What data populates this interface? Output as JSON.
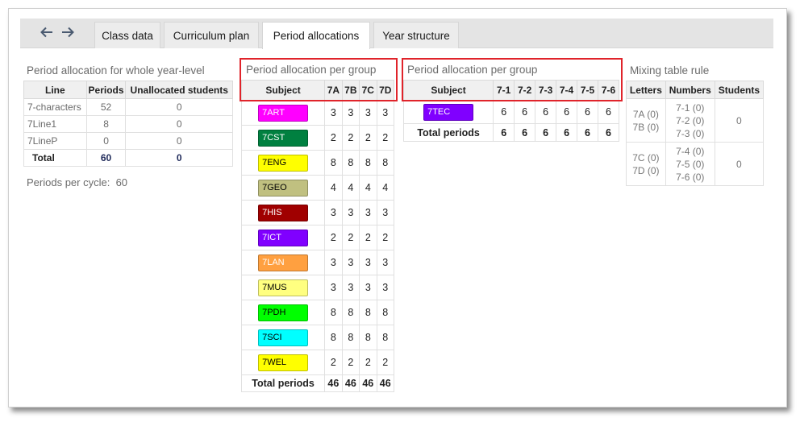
{
  "tabs": [
    {
      "label": "Class data"
    },
    {
      "label": "Curriculum plan"
    },
    {
      "label": "Period allocations"
    },
    {
      "label": "Year structure"
    }
  ],
  "whole": {
    "title": "Period allocation for whole year-level",
    "headers": [
      "Line",
      "Periods",
      "Unallocated students"
    ],
    "rows": [
      [
        "7-characters",
        "52",
        "0"
      ],
      [
        "7Line1",
        "8",
        "0"
      ],
      [
        "7LineP",
        "0",
        "0"
      ]
    ],
    "total": [
      "Total",
      "60",
      "0"
    ],
    "periods_per_cycle_label": "Periods per cycle:",
    "periods_per_cycle_value": "60"
  },
  "group1": {
    "title": "Period allocation per group",
    "headers": [
      "Subject",
      "7A",
      "7B",
      "7C",
      "7D"
    ],
    "rows": [
      {
        "subject": "7ART",
        "color": "#ff00ff",
        "text": "#ffffff",
        "values": [
          "3",
          "3",
          "3",
          "3"
        ]
      },
      {
        "subject": "7CST",
        "color": "#008040",
        "text": "#ffffff",
        "values": [
          "2",
          "2",
          "2",
          "2"
        ]
      },
      {
        "subject": "7ENG",
        "color": "#ffff00",
        "text": "#000000",
        "values": [
          "8",
          "8",
          "8",
          "8"
        ]
      },
      {
        "subject": "7GEO",
        "color": "#c0c080",
        "text": "#000000",
        "values": [
          "4",
          "4",
          "4",
          "4"
        ]
      },
      {
        "subject": "7HIS",
        "color": "#a00000",
        "text": "#ffffff",
        "values": [
          "3",
          "3",
          "3",
          "3"
        ]
      },
      {
        "subject": "7ICT",
        "color": "#8000ff",
        "text": "#ffffff",
        "values": [
          "2",
          "2",
          "2",
          "2"
        ]
      },
      {
        "subject": "7LAN",
        "color": "#ffa040",
        "text": "#ffffff",
        "values": [
          "3",
          "3",
          "3",
          "3"
        ]
      },
      {
        "subject": "7MUS",
        "color": "#ffff80",
        "text": "#000000",
        "values": [
          "3",
          "3",
          "3",
          "3"
        ]
      },
      {
        "subject": "7PDH",
        "color": "#00ff00",
        "text": "#000000",
        "values": [
          "8",
          "8",
          "8",
          "8"
        ]
      },
      {
        "subject": "7SCI",
        "color": "#00ffff",
        "text": "#000000",
        "values": [
          "8",
          "8",
          "8",
          "8"
        ]
      },
      {
        "subject": "7WEL",
        "color": "#ffff00",
        "text": "#000000",
        "values": [
          "2",
          "2",
          "2",
          "2"
        ]
      }
    ],
    "total_label": "Total periods",
    "totals": [
      "46",
      "46",
      "46",
      "46"
    ]
  },
  "group2": {
    "title": "Period allocation per group",
    "headers": [
      "Subject",
      "7-1",
      "7-2",
      "7-3",
      "7-4",
      "7-5",
      "7-6"
    ],
    "rows": [
      {
        "subject": "7TEC",
        "color": "#8000ff",
        "text": "#ffffff",
        "values": [
          "6",
          "6",
          "6",
          "6",
          "6",
          "6"
        ]
      }
    ],
    "total_label": "Total periods",
    "totals": [
      "6",
      "6",
      "6",
      "6",
      "6",
      "6"
    ]
  },
  "mix": {
    "title": "Mixing table rule",
    "headers": [
      "Letters",
      "Numbers",
      "Students"
    ],
    "rows": [
      {
        "letters": [
          "7A (0)",
          "7B (0)"
        ],
        "numbers": [
          "7-1 (0)",
          "7-2 (0)",
          "7-3 (0)"
        ],
        "students": "0"
      },
      {
        "letters": [
          "7C (0)",
          "7D (0)"
        ],
        "numbers": [
          "7-4 (0)",
          "7-5 (0)",
          "7-6 (0)"
        ],
        "students": "0"
      }
    ]
  },
  "icons": {
    "back": "arrow-left-icon",
    "forward": "arrow-right-icon"
  },
  "colors": {
    "highlight": "#e0242b",
    "nav_arrow": "#4a5a70"
  }
}
